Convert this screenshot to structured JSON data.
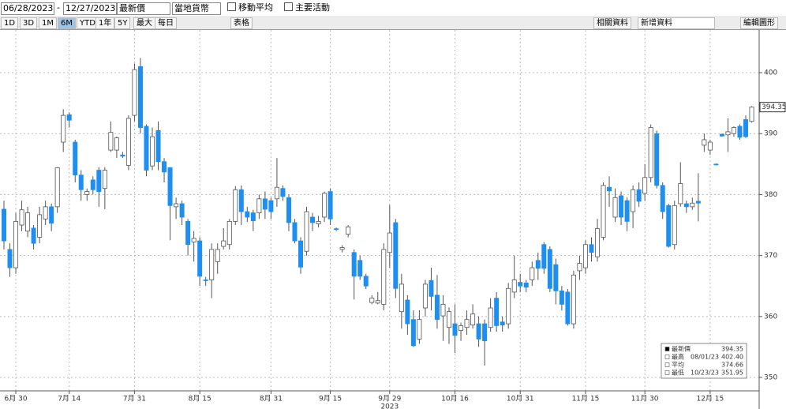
{
  "toolbar": {
    "start_date": "06/28/2023",
    "end_date": "12/27/2023",
    "field": "最新價",
    "currency": "當地貨幣",
    "moving_average": "移動平均",
    "key_events": "主要活動",
    "periods": [
      "1D",
      "3D",
      "1M",
      "6M",
      "YTD",
      "1年",
      "5Y",
      "最大"
    ],
    "frequency": "每日",
    "table": "表格",
    "related": "相關資料",
    "add_data": "新增資料",
    "edit_chart": "編輯圖形"
  },
  "chart_data": {
    "type": "candlestick",
    "categories": [
      null,
      null,
      "6月 30",
      null,
      null,
      null,
      null,
      null,
      null,
      null,
      null,
      "7月 14",
      null,
      null,
      null,
      null,
      null,
      null,
      null,
      null,
      null,
      null,
      "7月 31",
      null,
      null,
      null,
      null,
      null,
      null,
      null,
      null,
      null,
      null,
      "8月 15",
      null,
      null,
      null,
      null,
      null,
      null,
      null,
      null,
      null,
      null,
      null,
      "8月 31",
      null,
      null,
      null,
      null,
      null,
      null,
      null,
      null,
      null,
      "9月 15",
      null,
      null,
      null,
      null,
      null,
      null,
      null,
      null,
      null,
      "9月 29",
      null,
      null,
      null,
      null,
      null,
      null,
      null,
      null,
      null,
      null,
      "10月 16",
      null,
      null,
      null,
      null,
      null,
      null,
      null,
      null,
      null,
      null,
      "10月 31",
      null,
      null,
      null,
      null,
      null,
      null,
      null,
      null,
      null,
      null,
      "11月 15",
      null,
      null,
      null,
      null,
      null,
      null,
      null,
      null,
      null,
      "11月 30",
      null,
      null,
      null,
      null,
      null,
      null,
      null,
      null,
      null,
      null,
      "12月 15",
      null,
      null,
      null,
      null,
      null,
      null,
      null
    ],
    "year_label": "2023",
    "open": [
      377.6,
      371,
      368,
      375,
      374,
      374.5,
      373,
      376,
      378,
      378,
      388.6,
      393.1,
      388.6,
      383.2,
      380,
      382.4,
      384,
      381,
      387.3,
      387.3,
      386.5,
      384.8,
      393,
      401,
      391.2,
      384.7,
      390.5,
      385.4,
      384.4,
      378,
      378.5,
      375.6,
      372.2,
      372.4,
      366,
      366,
      369,
      371.5,
      371.8,
      375.6,
      380.8,
      377.2,
      377,
      377,
      379.3,
      379,
      379.3,
      381,
      379.5,
      375.4,
      372.4,
      370.7,
      376.3,
      375.2,
      376.3,
      380.5,
      374.4,
      371,
      373.5,
      370.5,
      369.2,
      366.6,
      362.3,
      362.2,
      362,
      370.5,
      375.4,
      360.8,
      362.7,
      359.5,
      356.3,
      361.4,
      365.9,
      363.5,
      360.1,
      358.2,
      358.8,
      357.7,
      358.2,
      358.6,
      358.8,
      358.8,
      358.2,
      363,
      359.1,
      358.8,
      364,
      365.6,
      365.5,
      366,
      369.2,
      371.8,
      371,
      368.5,
      364.2,
      364,
      358.8,
      367.5,
      368,
      371.8,
      369.8,
      373,
      381.2,
      376.3,
      379.8,
      379,
      377.2,
      380.8,
      380.2,
      382.8,
      390,
      381.5,
      378.2,
      371.8,
      378.5,
      378.5,
      378,
      378.9,
      388.1,
      387.3,
      385,
      389.9,
      389.8,
      390,
      391.2,
      392.3,
      392
    ],
    "high": [
      379,
      372,
      377,
      379,
      378,
      375,
      378,
      379,
      378.5,
      384.5,
      394,
      393.5,
      389,
      384,
      381,
      383,
      384.5,
      384.5,
      392,
      389.5,
      387,
      393,
      401.5,
      402.4,
      391.5,
      391,
      392,
      386,
      384.5,
      379.5,
      379,
      376,
      374,
      373,
      366.5,
      372,
      372,
      374.5,
      376,
      381.4,
      381.5,
      378,
      377.5,
      380,
      380.5,
      379.5,
      386,
      381.5,
      380,
      376,
      373,
      378,
      377,
      376.5,
      380.5,
      381,
      374.6,
      371.7,
      375,
      371,
      370,
      367,
      363.5,
      364,
      372,
      378.3,
      376,
      367,
      363.5,
      361,
      361,
      366,
      368,
      366.8,
      363.5,
      361.5,
      362,
      359,
      361,
      362,
      360,
      359.5,
      363,
      364,
      360,
      365.5,
      370,
      367,
      366,
      369,
      370.5,
      372.2,
      371.5,
      369.5,
      365,
      364.5,
      367.5,
      370,
      372.5,
      373,
      376,
      382,
      383,
      381,
      380.5,
      379.5,
      381.5,
      382,
      385,
      391.5,
      390.5,
      382,
      378.5,
      379,
      385.3,
      379,
      379.5,
      383.5,
      390,
      389,
      385.1,
      390,
      392.5,
      391.2,
      391.5,
      393,
      394.5
    ],
    "low": [
      371,
      366.5,
      367,
      374,
      373,
      371,
      372,
      375,
      374,
      377,
      387,
      391,
      382,
      379,
      379,
      380,
      378,
      377.6,
      387,
      386,
      386,
      384,
      392,
      390,
      383,
      384,
      384,
      382,
      372.5,
      376,
      375,
      370,
      369,
      365,
      365,
      363,
      367,
      371,
      371,
      375,
      375,
      375.5,
      374,
      376,
      376,
      376,
      378,
      379,
      374,
      372,
      367,
      370,
      374,
      374.6,
      375.5,
      375,
      374,
      370.5,
      373,
      362.8,
      366,
      364.5,
      362,
      362,
      361,
      368,
      363,
      358,
      357,
      355,
      355.5,
      360,
      361,
      358,
      356,
      355.5,
      354,
      356,
      357,
      358,
      355,
      351.95,
      357.5,
      357.5,
      357.5,
      358,
      363,
      364,
      364,
      365,
      366,
      367,
      364,
      362,
      361,
      358.5,
      358,
      366,
      367,
      369,
      369,
      372.5,
      378,
      375.5,
      375,
      374,
      374.5,
      378,
      379,
      382,
      381,
      376,
      371.3,
      371,
      378,
      377,
      377.5,
      375.6,
      387,
      386.5,
      384.8,
      389.5,
      387,
      389.5,
      389,
      389.3,
      391.8
    ],
    "close": [
      372.4,
      368,
      375.6,
      377.5,
      377,
      372,
      376.7,
      378,
      375.3,
      384.4,
      393,
      392.2,
      383.2,
      380.8,
      380.5,
      380.8,
      380.5,
      384,
      390.2,
      389.3,
      386.3,
      392.5,
      400.5,
      391,
      384,
      389.5,
      385.4,
      383.7,
      378.2,
      378.5,
      376.3,
      371.8,
      372.8,
      366.6,
      365.9,
      371,
      371,
      372.4,
      375.6,
      380.8,
      377.2,
      376.3,
      375.7,
      379.3,
      377.6,
      377.2,
      381.2,
      379.7,
      375.4,
      372.4,
      368.1,
      377.2,
      375.4,
      375.6,
      380.2,
      376,
      374.3,
      371.3,
      374.7,
      366.6,
      366.6,
      365,
      363,
      362.6,
      371,
      373.7,
      364.6,
      365.3,
      358.8,
      355.2,
      359.5,
      365.3,
      363.3,
      359.5,
      362,
      360.8,
      356.9,
      358.5,
      359.5,
      360.4,
      356.3,
      356,
      361.4,
      358.5,
      358.6,
      364.6,
      366,
      365,
      364.8,
      368,
      367.9,
      367.9,
      364.6,
      364.2,
      362,
      358.8,
      366.8,
      368.7,
      371.8,
      370.5,
      374.4,
      381.5,
      380.6,
      379.5,
      376.3,
      375.6,
      380.8,
      378.9,
      382.8,
      391,
      381.5,
      377.2,
      371.5,
      378.2,
      381.8,
      378,
      378.6,
      378.6,
      389,
      388.6,
      384.9,
      389.6,
      390.3,
      391,
      389.4,
      389.5,
      394.35
    ],
    "up_color": "#ffffff",
    "down_color": "#1e8ff0",
    "ylim": [
      347.8,
      407
    ],
    "yticks": [
      350,
      360,
      370,
      380,
      390,
      400
    ],
    "grid": true,
    "legend": {
      "rows": [
        {
          "label": "最新價",
          "date": "",
          "value": "394.35"
        },
        {
          "label": "最高",
          "date": "08/01/23",
          "value": "402.40"
        },
        {
          "label": "平均",
          "date": "",
          "value": "374.66"
        },
        {
          "label": "最低",
          "date": "10/23/23",
          "value": "351.95"
        }
      ]
    }
  }
}
